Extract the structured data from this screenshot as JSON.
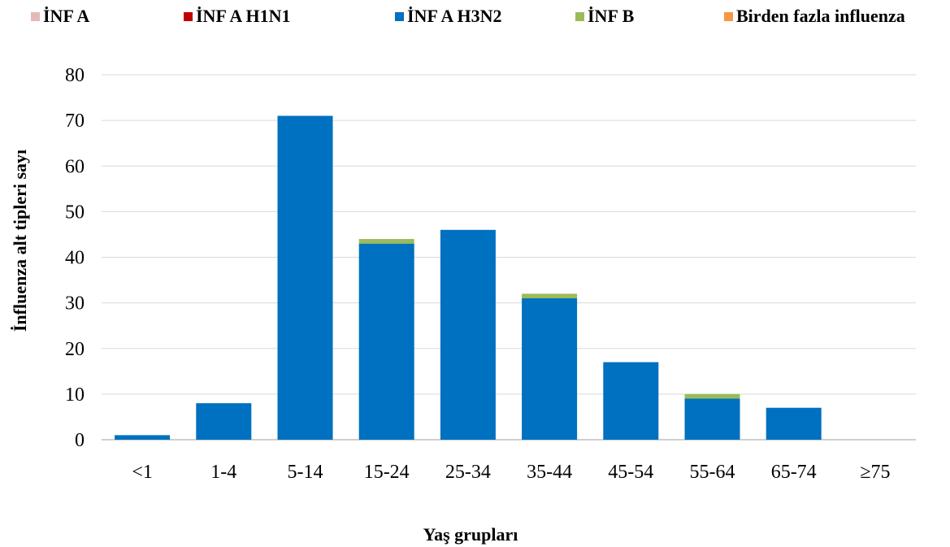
{
  "chart_data": {
    "type": "bar",
    "stacked": true,
    "title": "",
    "xlabel": "Yaş grupları",
    "ylabel": "İnfluenza alt tipleri sayı",
    "ylim": [
      0,
      80
    ],
    "yticks": [
      0,
      10,
      20,
      30,
      40,
      50,
      60,
      70,
      80
    ],
    "grid": true,
    "legend_position": "top",
    "categories": [
      "<1",
      "1-4",
      "5-14",
      "15-24",
      "25-34",
      "35-44",
      "45-54",
      "55-64",
      "65-74",
      "≥75"
    ],
    "series": [
      {
        "name": "İNF A",
        "color": "#e6b9b8",
        "values": [
          0,
          0,
          0,
          0,
          0,
          0,
          0,
          0,
          0,
          0
        ]
      },
      {
        "name": "İNF A H1N1",
        "color": "#c00000",
        "values": [
          0,
          0,
          0,
          0,
          0,
          0,
          0,
          0,
          0,
          0
        ]
      },
      {
        "name": "İNF A H3N2",
        "color": "#0070c0",
        "values": [
          1,
          8,
          71,
          43,
          46,
          31,
          17,
          9,
          7,
          0
        ]
      },
      {
        "name": "İNF B",
        "color": "#9bbb59",
        "values": [
          0,
          0,
          0,
          1,
          0,
          1,
          0,
          1,
          0,
          0
        ]
      },
      {
        "name": "Birden fazla influenza",
        "color": "#f79646",
        "values": [
          0,
          0,
          0,
          0,
          0,
          0,
          0,
          0,
          0,
          0
        ]
      }
    ]
  }
}
